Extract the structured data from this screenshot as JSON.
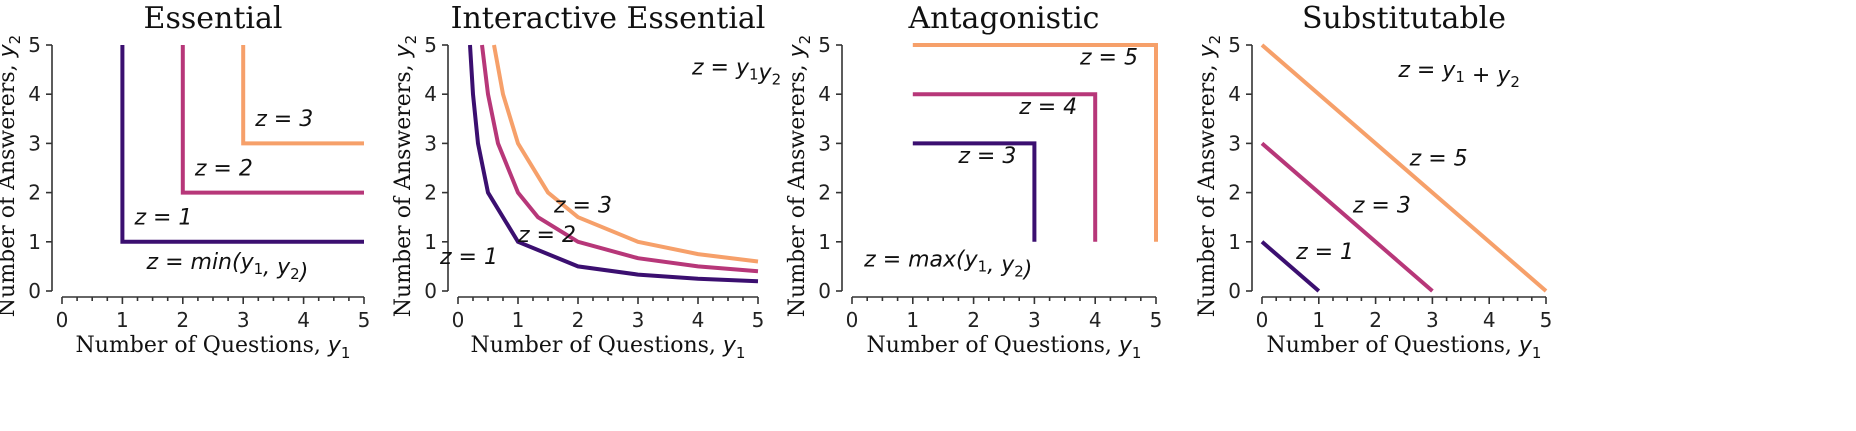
{
  "colors": {
    "z1": "#3b0f70",
    "z2": "#b73779",
    "z3": "#f6a06a"
  },
  "chart_data": [
    {
      "type": "line",
      "title": "Essential",
      "xlabel": "Number of Questions, y₁",
      "ylabel": "Number of Answerers, y₂",
      "xlim": [
        0,
        5
      ],
      "ylim": [
        0,
        5
      ],
      "xticks": [
        0,
        1,
        2,
        3,
        4,
        5
      ],
      "yticks": [
        0,
        1,
        2,
        3,
        4,
        5
      ],
      "series": [
        {
          "label": "z = 1",
          "color": "#3b0f70",
          "x": [
            1,
            1,
            5
          ],
          "y": [
            5,
            1,
            1
          ]
        },
        {
          "label": "z = 2",
          "color": "#b73779",
          "x": [
            2,
            2,
            5
          ],
          "y": [
            5,
            2,
            2
          ]
        },
        {
          "label": "z = 3",
          "color": "#f6a06a",
          "x": [
            3,
            3,
            5
          ],
          "y": [
            5,
            3,
            3
          ]
        }
      ],
      "annotations": [
        {
          "text": "z = 1",
          "x": 1.2,
          "y": 1.35
        },
        {
          "text": "z = 2",
          "x": 2.2,
          "y": 2.35
        },
        {
          "text": "z = 3",
          "x": 3.2,
          "y": 3.35
        },
        {
          "text": "z = min(y₁, y₂)",
          "x": 1.4,
          "y": 0.45
        }
      ]
    },
    {
      "type": "line",
      "title": "Interactive Essential",
      "xlabel": "Number of Questions, y₁",
      "ylabel": "Number of Answerers, y₂",
      "xlim": [
        0,
        5
      ],
      "ylim": [
        0,
        5
      ],
      "xticks": [
        0,
        1,
        2,
        3,
        4,
        5
      ],
      "yticks": [
        0,
        1,
        2,
        3,
        4,
        5
      ],
      "series": [
        {
          "label": "z = 1",
          "color": "#3b0f70",
          "x": [
            0.2,
            0.25,
            0.333,
            0.5,
            1,
            2,
            3,
            4,
            5
          ],
          "y": [
            5,
            4,
            3,
            2,
            1,
            0.5,
            0.333,
            0.25,
            0.2
          ]
        },
        {
          "label": "z = 2",
          "color": "#b73779",
          "x": [
            0.4,
            0.5,
            0.667,
            1,
            1.333,
            2,
            3,
            4,
            5
          ],
          "y": [
            5,
            4,
            3,
            2,
            1.5,
            1,
            0.667,
            0.5,
            0.4
          ]
        },
        {
          "label": "z = 3",
          "color": "#f6a06a",
          "x": [
            0.6,
            0.75,
            1,
            1.5,
            2,
            3,
            4,
            5
          ],
          "y": [
            5,
            4,
            3,
            2,
            1.5,
            1,
            0.75,
            0.6
          ]
        }
      ],
      "annotations": [
        {
          "text": "z = 1",
          "x": -0.3,
          "y": 0.55
        },
        {
          "text": "z = 2",
          "x": 1.0,
          "y": 1.0
        },
        {
          "text": "z = 3",
          "x": 1.6,
          "y": 1.6
        },
        {
          "text": "z = y₁y₂",
          "x": 3.9,
          "y": 4.4
        }
      ]
    },
    {
      "type": "line",
      "title": "Antagonistic",
      "xlabel": "Number of Questions, y₁",
      "ylabel": "Number of Answerers, y₂",
      "xlim": [
        0,
        5
      ],
      "ylim": [
        0,
        5
      ],
      "xticks": [
        0,
        1,
        2,
        3,
        4,
        5
      ],
      "yticks": [
        0,
        1,
        2,
        3,
        4,
        5
      ],
      "series": [
        {
          "label": "z = 3",
          "color": "#3b0f70",
          "x": [
            1,
            3,
            3
          ],
          "y": [
            3,
            3,
            1
          ]
        },
        {
          "label": "z = 4",
          "color": "#b73779",
          "x": [
            1,
            4,
            4
          ],
          "y": [
            4,
            4,
            1
          ]
        },
        {
          "label": "z = 5",
          "color": "#f6a06a",
          "x": [
            1,
            5,
            5
          ],
          "y": [
            5,
            5,
            1
          ]
        }
      ],
      "annotations": [
        {
          "text": "z = 3",
          "x": 1.75,
          "y": 2.6
        },
        {
          "text": "z = 4",
          "x": 2.75,
          "y": 3.6
        },
        {
          "text": "z = 5",
          "x": 3.75,
          "y": 4.6
        },
        {
          "text": "z = max(y₁, y₂)",
          "x": 0.2,
          "y": 0.5
        }
      ]
    },
    {
      "type": "line",
      "title": "Substitutable",
      "xlabel": "Number of Questions, y₁",
      "ylabel": "Number of Answerers, y₂",
      "xlim": [
        0,
        5
      ],
      "ylim": [
        0,
        5
      ],
      "xticks": [
        0,
        1,
        2,
        3,
        4,
        5
      ],
      "yticks": [
        0,
        1,
        2,
        3,
        4,
        5
      ],
      "series": [
        {
          "label": "z = 1",
          "color": "#3b0f70",
          "x": [
            0,
            1
          ],
          "y": [
            1,
            0
          ]
        },
        {
          "label": "z = 3",
          "color": "#b73779",
          "x": [
            0,
            3
          ],
          "y": [
            3,
            0
          ]
        },
        {
          "label": "z = 5",
          "color": "#f6a06a",
          "x": [
            0,
            5
          ],
          "y": [
            5,
            0
          ]
        }
      ],
      "annotations": [
        {
          "text": "z = 1",
          "x": 0.6,
          "y": 0.65
        },
        {
          "text": "z = 3",
          "x": 1.6,
          "y": 1.6
        },
        {
          "text": "z = 5",
          "x": 2.6,
          "y": 2.55
        },
        {
          "text": "z = y₁ + y₂",
          "x": 2.4,
          "y": 4.35
        }
      ]
    }
  ]
}
